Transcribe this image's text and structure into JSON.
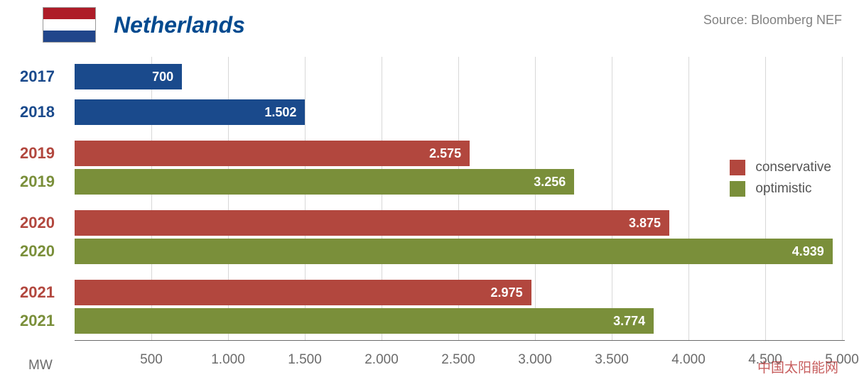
{
  "title": {
    "text": "Netherlands",
    "color": "#004a8f",
    "fontsize": 32
  },
  "source": {
    "text": "Source: Bloomberg NEF",
    "color": "#808080"
  },
  "flag": {
    "stripes": [
      "#ae1c28",
      "#ffffff",
      "#21468b"
    ]
  },
  "chart": {
    "type": "bar-horizontal",
    "xmin": 0,
    "xmax": 5000,
    "xtick_step": 500,
    "xticks": [
      "500",
      "1.000",
      "1.500",
      "2.000",
      "2.500",
      "3.000",
      "3.500",
      "4.000",
      "4.500",
      "5.000"
    ],
    "x_unit_label": "MW",
    "grid_color": "#d8d8d8",
    "axis_color": "#6b6b6b",
    "tick_color": "#6b6b6b",
    "background": "#ffffff",
    "colors": {
      "historical": "#1a4a8c",
      "conservative": "#b2473e",
      "optimistic": "#7a8f3a"
    },
    "bar_value_text_color": "#ffffff",
    "rows": [
      {
        "year": "2017",
        "series": "historical",
        "value": 700,
        "label": "700",
        "y": 10
      },
      {
        "year": "2018",
        "series": "historical",
        "value": 1502,
        "label": "1.502",
        "y": 60
      },
      {
        "year": "2019",
        "series": "conservative",
        "value": 2575,
        "label": "2.575",
        "y": 118
      },
      {
        "year": "2019",
        "series": "optimistic",
        "value": 3256,
        "label": "3.256",
        "y": 158
      },
      {
        "year": "2020",
        "series": "conservative",
        "value": 3875,
        "label": "3.875",
        "y": 216
      },
      {
        "year": "2020",
        "series": "optimistic",
        "value": 4939,
        "label": "4.939",
        "y": 256
      },
      {
        "year": "2021",
        "series": "conservative",
        "value": 2975,
        "label": "2.975",
        "y": 314
      },
      {
        "year": "2021",
        "series": "optimistic",
        "value": 3774,
        "label": "3.774",
        "y": 354
      }
    ],
    "year_label_colors": {
      "historical": "#1a4a8c",
      "conservative": "#b2473e",
      "optimistic": "#7a8f3a"
    }
  },
  "legend": {
    "items": [
      {
        "label": "conservative",
        "color": "#b2473e"
      },
      {
        "label": "optimistic",
        "color": "#7a8f3a"
      }
    ],
    "text_color": "#555555"
  },
  "watermark": {
    "text": "中国太阳能网"
  }
}
